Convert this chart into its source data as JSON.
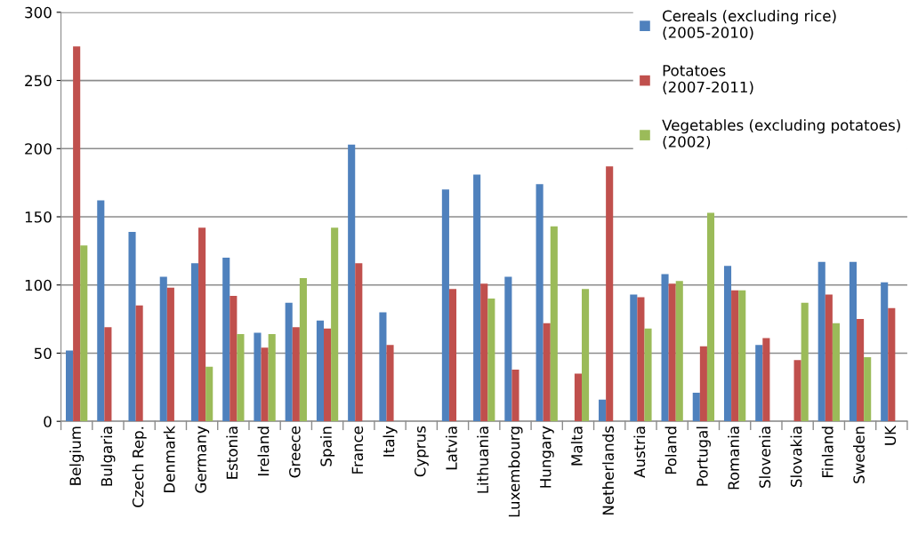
{
  "chart_data": {
    "type": "bar",
    "categories": [
      "Belgium",
      "Bulgaria",
      "Czech Rep.",
      "Denmark",
      "Germany",
      "Estonia",
      "Ireland",
      "Greece",
      "Spain",
      "France",
      "Italy",
      "Cyprus",
      "Latvia",
      "Lithuania",
      "Luxembourg",
      "Hungary",
      "Malta",
      "Netherlands",
      "Austria",
      "Poland",
      "Portugal",
      "Romania",
      "Slovenia",
      "Slovakia",
      "Finland",
      "Sweden",
      "UK"
    ],
    "series": [
      {
        "name": "Cereals (excluding rice)\n(2005-2010)",
        "color": "#4f81bd",
        "values": [
          52,
          162,
          139,
          106,
          116,
          120,
          65,
          87,
          74,
          203,
          80,
          null,
          170,
          181,
          106,
          174,
          null,
          16,
          93,
          108,
          21,
          114,
          56,
          null,
          117,
          117,
          102
        ]
      },
      {
        "name": "Potatoes\n(2007-2011)",
        "color": "#c0504d",
        "values": [
          275,
          69,
          85,
          98,
          142,
          92,
          54,
          69,
          68,
          116,
          56,
          null,
          97,
          101,
          38,
          72,
          35,
          187,
          91,
          101,
          55,
          96,
          61,
          45,
          93,
          75,
          83
        ]
      },
      {
        "name": "Vegetables (excluding potatoes)\n(2002)",
        "color": "#9bbb59",
        "values": [
          129,
          null,
          null,
          null,
          40,
          64,
          64,
          105,
          142,
          null,
          null,
          null,
          null,
          90,
          null,
          143,
          97,
          null,
          68,
          103,
          153,
          96,
          null,
          87,
          72,
          47,
          null
        ]
      }
    ],
    "ylim": [
      0,
      300
    ],
    "yticks": [
      0,
      50,
      100,
      150,
      200,
      250,
      300
    ],
    "grid": "y",
    "legend": "top right"
  }
}
